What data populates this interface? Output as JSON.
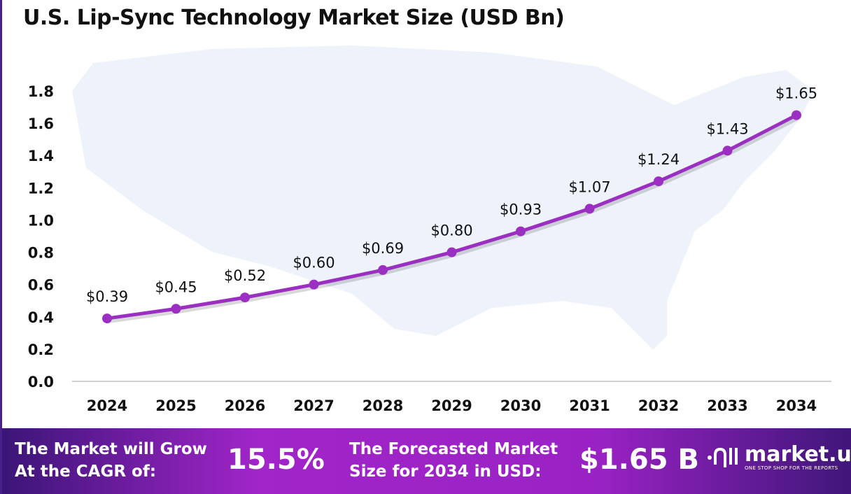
{
  "chart_data": {
    "type": "line",
    "title": "U.S. Lip-Sync Technology Market Size (USD Bn)",
    "categories": [
      "2024",
      "2025",
      "2026",
      "2027",
      "2028",
      "2029",
      "2030",
      "2031",
      "2032",
      "2033",
      "2034"
    ],
    "values": [
      0.39,
      0.45,
      0.52,
      0.6,
      0.69,
      0.8,
      0.93,
      1.07,
      1.24,
      1.43,
      1.65
    ],
    "data_labels": [
      "$0.39",
      "$0.45",
      "$0.52",
      "$0.60",
      "$0.69",
      "$0.80",
      "$0.93",
      "$1.07",
      "$1.24",
      "$1.43",
      "$1.65"
    ],
    "yticks": [
      "0.0",
      "0.2",
      "0.4",
      "0.6",
      "0.8",
      "1.0",
      "1.2",
      "1.4",
      "1.6",
      "1.8"
    ],
    "ylim": [
      0,
      1.8
    ],
    "grid": false,
    "line_color": "#9b2fc2",
    "background": "US map silhouette, light blue"
  },
  "banner": {
    "cagr_label_line1": "The Market will Grow",
    "cagr_label_line2": "At the CAGR of:",
    "cagr_value": "15.5%",
    "forecast_label_line1": "The Forecasted Market",
    "forecast_label_line2": "Size for 2034 in USD:",
    "forecast_value": "$1.65 B",
    "logo_name": "market.us",
    "logo_tagline": "ONE STOP SHOP FOR THE REPORTS"
  }
}
